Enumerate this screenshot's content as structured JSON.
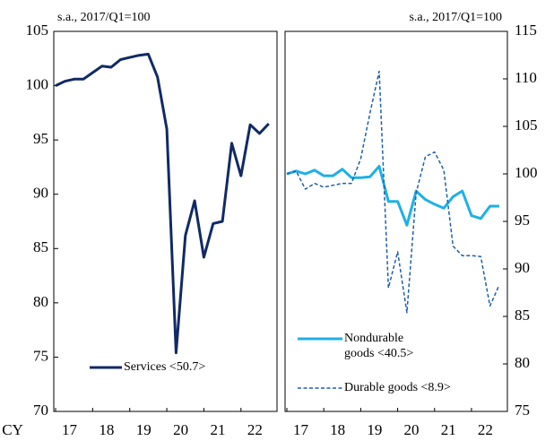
{
  "chart_data": [
    {
      "type": "line",
      "subtitle": "s.a., 2017/Q1=100",
      "x_prefix": "CY",
      "categories": [
        null,
        "17",
        null,
        null,
        null,
        "18",
        null,
        null,
        null,
        "19",
        null,
        null,
        null,
        "20",
        null,
        null,
        null,
        "21",
        null,
        null,
        null,
        "22",
        null,
        null
      ],
      "ylim": [
        70,
        105
      ],
      "yticks": [
        70,
        75,
        80,
        85,
        90,
        95,
        100,
        105
      ],
      "y_axis": "left",
      "legend": "lower center",
      "series": [
        {
          "name": "Services <50.7>",
          "color": "#112a66",
          "dashed": false,
          "values": [
            100.0,
            100.4,
            100.6,
            100.6,
            101.2,
            101.8,
            101.7,
            102.4,
            102.6,
            102.8,
            102.9,
            100.8,
            96.0,
            75.4,
            86.2,
            89.4,
            84.2,
            87.3,
            87.5,
            94.7,
            91.7,
            96.4,
            95.6,
            96.5
          ]
        }
      ]
    },
    {
      "type": "line",
      "subtitle": "s.a., 2017/Q1=100",
      "categories": [
        null,
        "17",
        null,
        null,
        null,
        "18",
        null,
        null,
        null,
        "19",
        null,
        null,
        null,
        "20",
        null,
        null,
        null,
        "21",
        null,
        null,
        null,
        "22",
        null,
        null
      ],
      "ylim": [
        75,
        115
      ],
      "yticks": [
        75,
        80,
        85,
        90,
        95,
        100,
        105,
        110,
        115
      ],
      "y_axis": "right",
      "legend": "lower left",
      "series": [
        {
          "name": "Nondurable goods <40.5>",
          "color": "#1eb0e6",
          "dashed": false,
          "values": [
            100.0,
            100.3,
            100.0,
            100.4,
            99.8,
            99.8,
            100.5,
            99.6,
            99.6,
            99.7,
            100.8,
            97.1,
            97.1,
            94.6,
            98.2,
            97.3,
            96.8,
            96.4,
            97.6,
            98.2,
            95.6,
            95.3,
            96.6,
            96.6
          ]
        },
        {
          "name": "Durable goods <8.9>",
          "color": "#1f5fa8",
          "dashed": true,
          "values": [
            100.0,
            100.3,
            98.4,
            99.0,
            98.6,
            98.8,
            99.0,
            99.0,
            101.6,
            106.4,
            110.8,
            88.0,
            91.8,
            85.4,
            98.0,
            101.8,
            102.3,
            100.4,
            92.4,
            91.4,
            91.4,
            91.3,
            86.1,
            88.3
          ]
        }
      ]
    }
  ]
}
